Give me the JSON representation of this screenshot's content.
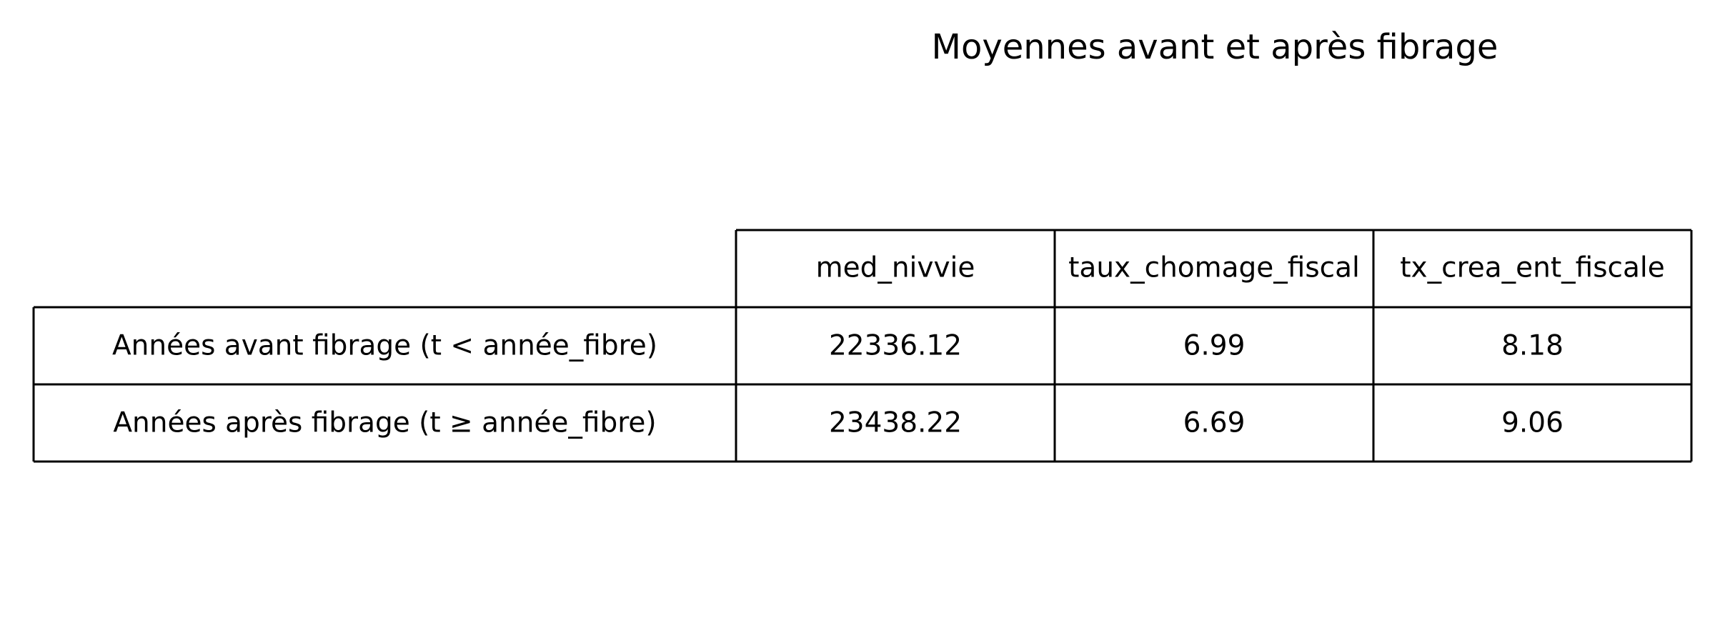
{
  "chart_data": {
    "type": "table",
    "title": "Moyennes avant et après fibrage",
    "columns": [
      "med_nivvie",
      "taux_chomage_fiscal",
      "tx_crea_ent_fiscale"
    ],
    "rows": [
      {
        "label": "Années avant fibrage (t < année_fibre)",
        "values": [
          "22336.12",
          "6.99",
          "8.18"
        ]
      },
      {
        "label": "Années après fibrage (t ≥ année_fibre)",
        "values": [
          "23438.22",
          "6.69",
          "9.06"
        ]
      }
    ]
  }
}
